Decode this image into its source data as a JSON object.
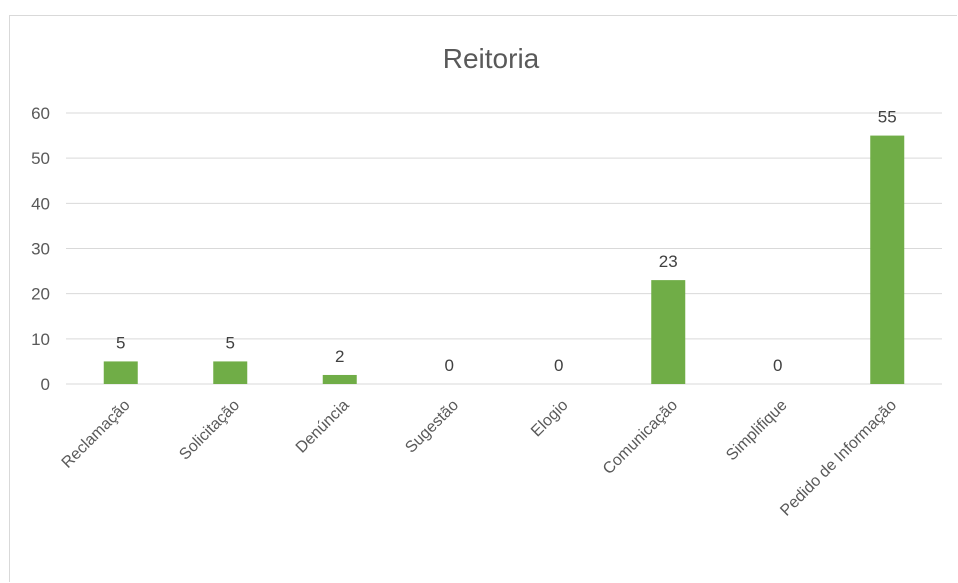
{
  "chart_data": {
    "type": "bar",
    "title": "Reitoria",
    "categories": [
      "Reclamação",
      "Solicitação",
      "Denúncia",
      "Sugestão",
      "Elogio",
      "Comunicação",
      "Simplifique",
      "Pedido de Informação"
    ],
    "values": [
      5,
      5,
      2,
      0,
      0,
      23,
      0,
      55
    ],
    "ylim": [
      0,
      60
    ],
    "yticks": [
      0,
      10,
      20,
      30,
      40,
      50,
      60
    ],
    "grid": true,
    "legend": "none",
    "data_labels": true,
    "bar_color": "#70ad47",
    "gridline_color": "#d9d9d9"
  }
}
